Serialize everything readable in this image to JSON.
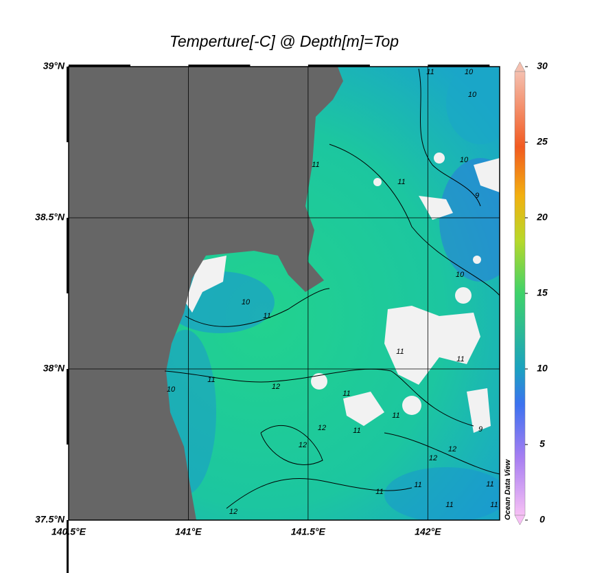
{
  "title": "Temperture[-C] @ Depth[m]=Top",
  "map": {
    "xlim": [
      140.5,
      142.3
    ],
    "ylim": [
      37.5,
      39
    ],
    "xticks": [
      {
        "value": 140.5,
        "label": "140.5°E"
      },
      {
        "value": 141,
        "label": "141°E"
      },
      {
        "value": 141.5,
        "label": "141.5°E"
      },
      {
        "value": 142,
        "label": "142°E"
      }
    ],
    "yticks": [
      {
        "value": 37.5,
        "label": "37.5°N"
      },
      {
        "value": 38,
        "label": "38°N"
      },
      {
        "value": 38.5,
        "label": "38.5°N"
      },
      {
        "value": 39,
        "label": "39°N"
      }
    ],
    "grid": true,
    "contour_labels": [
      11,
      10,
      10,
      11,
      11,
      10,
      9,
      10,
      11,
      10,
      11,
      11,
      11,
      12,
      10,
      11,
      11,
      12,
      12,
      11,
      12,
      12,
      9,
      11,
      11,
      12,
      11,
      11,
      11
    ]
  },
  "colorbar": {
    "lim": [
      0,
      30
    ],
    "ticks": [
      0,
      5,
      10,
      15,
      20,
      25,
      30
    ]
  },
  "watermark": "Ocean Data View"
}
